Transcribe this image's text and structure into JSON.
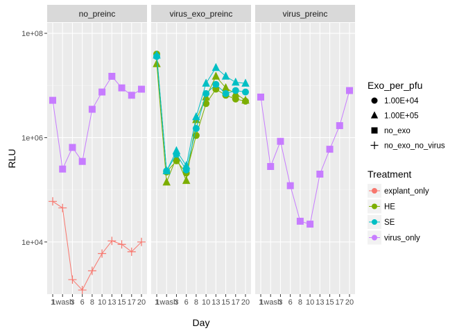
{
  "chart_data": {
    "type": "line",
    "xlabel": "Day",
    "ylabel": "RLU",
    "y_scale": "log10",
    "ylim_log10": [
      3.0,
      8.2
    ],
    "y_ticks": [
      {
        "value": 100000000,
        "label": "1e+08"
      },
      {
        "value": 1000000,
        "label": "1e+06"
      },
      {
        "value": 10000,
        "label": "1e+04"
      }
    ],
    "x_categories": [
      "1",
      "1wash",
      "3",
      "6",
      "8",
      "10",
      "13",
      "15",
      "17",
      "20"
    ],
    "x_tick_labels": [
      "1",
      "1wash",
      "3",
      "6",
      "8",
      "10",
      "13",
      "15",
      "17",
      "20"
    ],
    "grid": true,
    "legend_placement": "right",
    "panels": [
      {
        "title": "no_preinc",
        "series": [
          {
            "treatment": "virus_only",
            "exo": "no_exo",
            "values": [
              5200000,
              250000,
              650000,
              350000,
              3500000,
              7500000,
              15000000,
              9000000,
              6500000,
              8500000
            ]
          },
          {
            "treatment": "explant_only",
            "exo": "no_exo_no_virus",
            "values": [
              60000,
              45000,
              1900,
              1200,
              2800,
              6000,
              10500,
              9000,
              6500,
              10000
            ]
          }
        ]
      },
      {
        "title": "virus_exo_preinc",
        "series": [
          {
            "treatment": "HE",
            "exo": "1.00E+04",
            "values": [
              40000000,
              220000,
              360000,
              210000,
              1100000,
              4500000,
              8500000,
              6500000,
              5500000,
              5000000
            ]
          },
          {
            "treatment": "HE",
            "exo": "1.00E+05",
            "values": [
              26000000,
              140000,
              420000,
              150000,
              2200000,
              6000000,
              15000000,
              9000000,
              7000000,
              5200000
            ]
          },
          {
            "treatment": "SE",
            "exo": "1.00E+04",
            "values": [
              36000000,
              230000,
              480000,
              240000,
              1500000,
              7000000,
              10500000,
              7000000,
              8000000,
              7500000
            ]
          },
          {
            "treatment": "SE",
            "exo": "1.00E+05",
            "values": [
              38000000,
              230000,
              560000,
              290000,
              2500000,
              11000000,
              22000000,
              15000000,
              11500000,
              11000000
            ]
          }
        ]
      },
      {
        "title": "virus_preinc",
        "series": [
          {
            "treatment": "virus_only",
            "exo": "no_exo",
            "values": [
              6000000,
              280000,
              850000,
              120000,
              25000,
              22000,
              200000,
              600000,
              1700000,
              8000000
            ]
          }
        ]
      }
    ],
    "legend_shape": {
      "title": "Exo_per_pfu",
      "items": [
        {
          "label": "1.00E+04",
          "shape": "circle"
        },
        {
          "label": "1.00E+05",
          "shape": "triangle"
        },
        {
          "label": "no_exo",
          "shape": "square"
        },
        {
          "label": "no_exo_no_virus",
          "shape": "plus"
        }
      ]
    },
    "legend_color": {
      "title": "Treatment",
      "items": [
        {
          "label": "explant_only",
          "color": "#F8766D"
        },
        {
          "label": "HE",
          "color": "#7CAE00"
        },
        {
          "label": "SE",
          "color": "#00BFC4"
        },
        {
          "label": "virus_only",
          "color": "#C77CFF"
        }
      ]
    }
  }
}
